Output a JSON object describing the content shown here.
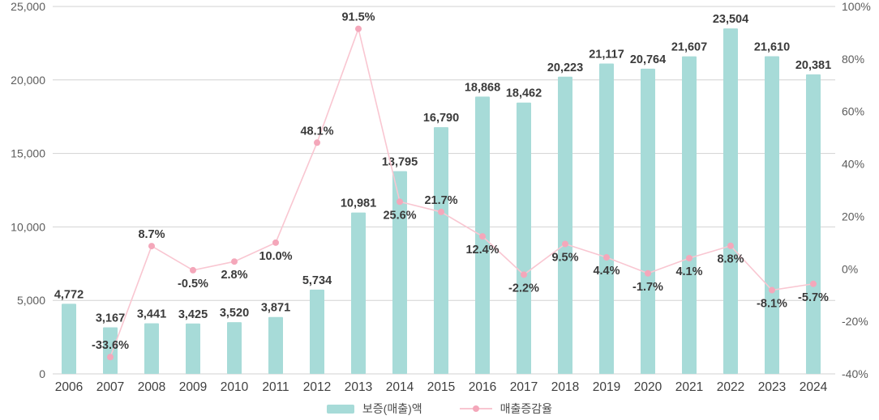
{
  "chart_data": {
    "type": "bar+line",
    "title": "",
    "categories": [
      "2006",
      "2007",
      "2008",
      "2009",
      "2010",
      "2011",
      "2012",
      "2013",
      "2014",
      "2015",
      "2016",
      "2017",
      "2018",
      "2019",
      "2020",
      "2021",
      "2022",
      "2023",
      "2024"
    ],
    "series": [
      {
        "name": "보증(매출)액",
        "type": "bar",
        "axis": "left",
        "color": "#a7dbd8",
        "values": [
          4772,
          3167,
          3441,
          3425,
          3520,
          3871,
          5734,
          10981,
          13795,
          16790,
          18868,
          18462,
          20223,
          21117,
          20764,
          21607,
          23504,
          21610,
          20381
        ],
        "labels": [
          "4,772",
          "3,167",
          "3,441",
          "3,425",
          "3,520",
          "3,871",
          "5,734",
          "10,981",
          "13,795",
          "16,790",
          "18,868",
          "18,462",
          "20,223",
          "21,117",
          "20,764",
          "21,607",
          "23,504",
          "21,610",
          "20,381"
        ]
      },
      {
        "name": "매출증감율",
        "type": "line",
        "axis": "right",
        "color": "#f9c6d1",
        "dot_color": "#f4a7ba",
        "values": [
          null,
          -33.6,
          8.7,
          -0.5,
          2.8,
          10.0,
          48.1,
          91.5,
          25.6,
          21.7,
          12.4,
          -2.2,
          9.5,
          4.4,
          -1.7,
          4.1,
          8.8,
          -8.1,
          -5.7
        ],
        "labels": [
          "",
          "-33.6%",
          "8.7%",
          "-0.5%",
          "2.8%",
          "10.0%",
          "48.1%",
          "91.5%",
          "25.6%",
          "21.7%",
          "12.4%",
          "-2.2%",
          "9.5%",
          "4.4%",
          "-1.7%",
          "4.1%",
          "8.8%",
          "-8.1%",
          "-5.7%"
        ],
        "label_positions": [
          "",
          "above",
          "above",
          "below",
          "below",
          "below",
          "above",
          "above",
          "below",
          "above",
          "below",
          "below",
          "below",
          "below",
          "below",
          "below",
          "below",
          "below",
          "below"
        ]
      }
    ],
    "left_axis": {
      "min": 0,
      "max": 25000,
      "tick_values": [
        25000,
        20000,
        15000,
        10000,
        5000,
        0
      ],
      "tick_labels": [
        "25,000",
        "20,000",
        "15,000",
        "10,000",
        "5,000",
        "0"
      ]
    },
    "right_axis": {
      "min": -40,
      "max": 100,
      "tick_values": [
        100,
        80,
        60,
        40,
        20,
        0,
        -20,
        -40
      ],
      "tick_labels": [
        "100%",
        "80%",
        "60%",
        "40%",
        "20%",
        "0%",
        "-20%",
        "-40%"
      ]
    },
    "grid": true,
    "legend_position": "bottom",
    "colors": {
      "gridline": "#d2d2d2",
      "axis_label": "#5c5c5c",
      "x_label": "#3f3f3f",
      "data_label": "#3a3a3a",
      "background": "#ffffff"
    }
  }
}
